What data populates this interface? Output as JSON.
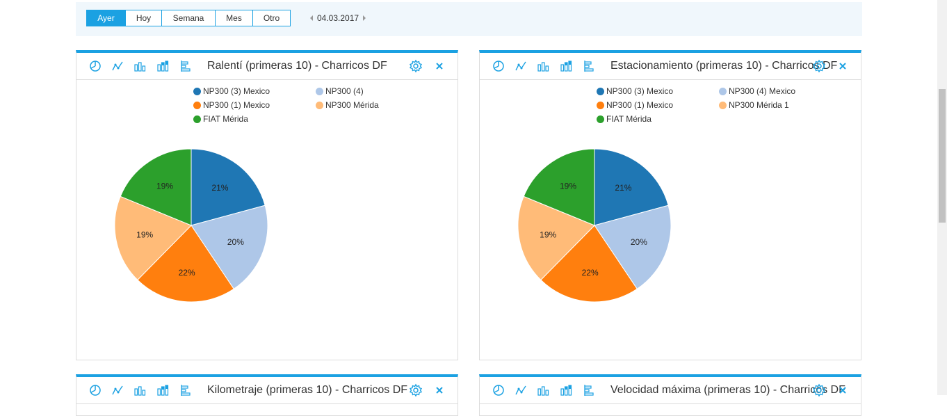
{
  "toolbar": {
    "periods": [
      {
        "label": "Ayer",
        "active": true
      },
      {
        "label": "Hoy",
        "active": false
      },
      {
        "label": "Semana",
        "active": false
      },
      {
        "label": "Mes",
        "active": false
      },
      {
        "label": "Otro",
        "active": false
      }
    ],
    "date": "04.03.2017"
  },
  "colors": {
    "accent": "#1ba1e2",
    "series": [
      "#1f77b4",
      "#aec7e8",
      "#ff7f0e",
      "#ffbb78",
      "#2ca02c"
    ]
  },
  "widgets": [
    {
      "title": "Ralentí (primeras 10) - Charricos DF",
      "legend": [
        "NP300 (3) Mexico",
        "NP300 (4)",
        "NP300 (1) Mexico",
        "NP300 Mérida",
        "FIAT Mérida"
      ]
    },
    {
      "title": "Estacionamiento (primeras 10) - Charricos DF",
      "legend": [
        "NP300 (3) Mexico",
        "NP300 (4) Mexico",
        "NP300 (1) Mexico",
        "NP300 Mérida 1",
        "FIAT Mérida"
      ]
    },
    {
      "title": "Kilometraje (primeras 10) - Charricos DF"
    },
    {
      "title": "Velocidad máxima (primeras 10) - Charricos DF"
    }
  ],
  "chart_data": [
    {
      "type": "pie",
      "title": "Ralentí (primeras 10) - Charricos DF",
      "categories": [
        "NP300 (3) Mexico",
        "NP300 (4)",
        "NP300 (1) Mexico",
        "NP300 Mérida",
        "FIAT Mérida"
      ],
      "values": [
        21,
        20,
        22,
        19,
        19
      ],
      "labels": [
        "21%",
        "20%",
        "22%",
        "19%",
        "19%"
      ]
    },
    {
      "type": "pie",
      "title": "Estacionamiento (primeras 10) - Charricos DF",
      "categories": [
        "NP300 (3) Mexico",
        "NP300 (4) Mexico",
        "NP300 (1) Mexico",
        "NP300 Mérida 1",
        "FIAT Mérida"
      ],
      "values": [
        21,
        20,
        22,
        19,
        19
      ],
      "labels": [
        "21%",
        "20%",
        "22%",
        "19%",
        "19%"
      ]
    }
  ]
}
